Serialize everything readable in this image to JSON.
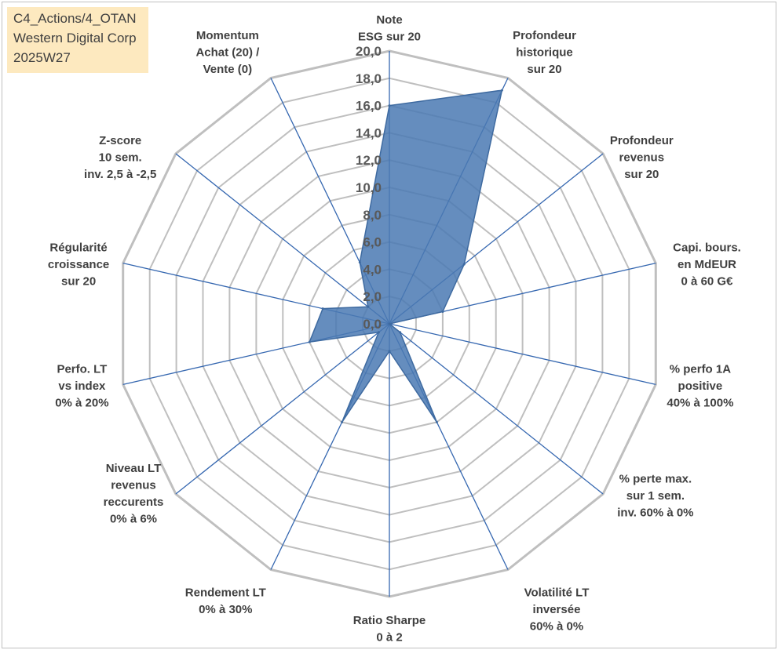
{
  "info_box": {
    "line1": "C4_Actions/4_OTAN",
    "line2": "Western Digital Corp",
    "line3": "2025W27"
  },
  "chart_data": {
    "type": "radar",
    "title": "",
    "rmin": 0,
    "rmax": 20,
    "tick_step": 2,
    "tick_labels": [
      "0,0",
      "2,0",
      "4,0",
      "6,0",
      "8,0",
      "10,0",
      "12,0",
      "14,0",
      "16,0",
      "18,0",
      "20,0"
    ],
    "axes": [
      [
        "Note",
        "ESG sur 20"
      ],
      [
        "Profondeur",
        "historique",
        "sur 20"
      ],
      [
        "Profondeur",
        "revenus",
        "sur 20"
      ],
      [
        "Capi. bours.",
        "en MdEUR",
        "0 à 60 G€"
      ],
      [
        "% perfo 1A",
        "positive",
        "40% à 100%"
      ],
      [
        "% perte max.",
        "sur 1 sem.",
        "inv. 60% à 0%"
      ],
      [
        "Volatilité LT",
        "inversée",
        "60% à 0%"
      ],
      [
        "Ratio Sharpe",
        "0 à 2"
      ],
      [
        "Rendement LT",
        "0% à 30%"
      ],
      [
        "Niveau LT",
        "revenus",
        "reccurents",
        "0% à 6%"
      ],
      [
        "Perfo. LT",
        "vs index",
        "0% à 20%"
      ],
      [
        "Régularité",
        "croissance",
        "sur 20"
      ],
      [
        "Z-score",
        "10 sem.",
        "inv. 2,5 à -2,5"
      ],
      [
        "Momentum",
        "Achat (20) /",
        "Vente (0)"
      ]
    ],
    "series": [
      {
        "values": [
          16,
          19,
          7,
          4,
          0,
          1,
          8,
          2,
          8,
          1,
          6,
          5,
          2,
          5
        ]
      }
    ],
    "colors": {
      "fill": "#4a79b3",
      "stroke": "#3e6aa0",
      "grid": "#bfbfbf",
      "spoke": "#3567b0"
    }
  }
}
